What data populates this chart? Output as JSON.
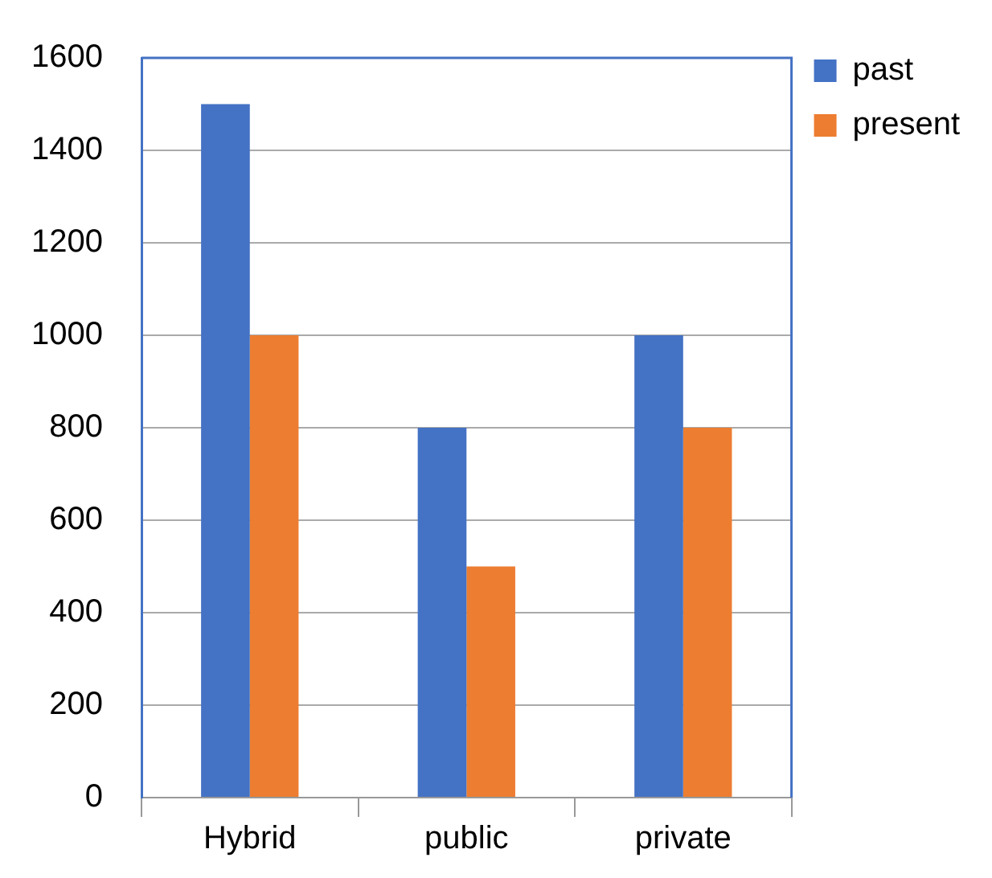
{
  "chart_data": {
    "type": "bar",
    "categories": [
      "Hybrid",
      "public",
      "private"
    ],
    "series": [
      {
        "name": "past",
        "color": "#4472c4",
        "values": [
          1500,
          800,
          1000
        ]
      },
      {
        "name": "present",
        "color": "#ed7d31",
        "values": [
          1000,
          500,
          800
        ]
      }
    ],
    "ylim": [
      0,
      1600
    ],
    "yticks": [
      0,
      200,
      400,
      600,
      800,
      1000,
      1200,
      1400,
      1600
    ],
    "grid": "y",
    "legend": "top right"
  }
}
